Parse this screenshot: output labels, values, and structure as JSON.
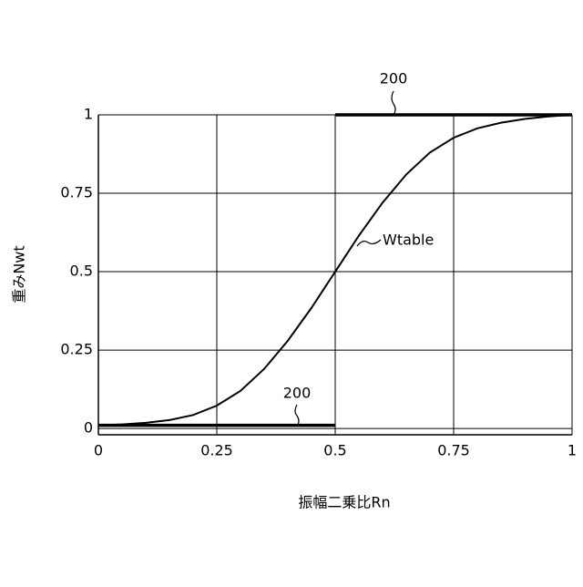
{
  "chart_data": {
    "type": "line",
    "x_label": "振幅二乗比Rn",
    "y_label": "重みNwt",
    "x": [
      0,
      0.05,
      0.1,
      0.15,
      0.2,
      0.25,
      0.3,
      0.35,
      0.4,
      0.45,
      0.5,
      0.55,
      0.6,
      0.65,
      0.7,
      0.75,
      0.8,
      0.85,
      0.9,
      0.95,
      1
    ],
    "series": [
      {
        "name": "Wtable",
        "color": "#000000",
        "values": [
          0.01,
          0.013,
          0.018,
          0.027,
          0.043,
          0.073,
          0.12,
          0.19,
          0.28,
          0.385,
          0.5,
          0.615,
          0.72,
          0.81,
          0.88,
          0.927,
          0.957,
          0.975,
          0.987,
          0.995,
          1
        ]
      }
    ],
    "reference_lines": [
      {
        "label": "200",
        "x": [
          0,
          0.5
        ],
        "values": [
          0.01,
          0.01
        ]
      },
      {
        "label": "200",
        "x": [
          0.5,
          1
        ],
        "values": [
          1,
          1
        ]
      }
    ],
    "xlim": [
      0,
      1
    ],
    "xticks": [
      0,
      0.25,
      0.5,
      0.75,
      1
    ],
    "ylim": [
      -0.02,
      1
    ],
    "yticks": [
      0,
      0.25,
      0.5,
      0.75,
      1
    ],
    "grid": true
  }
}
